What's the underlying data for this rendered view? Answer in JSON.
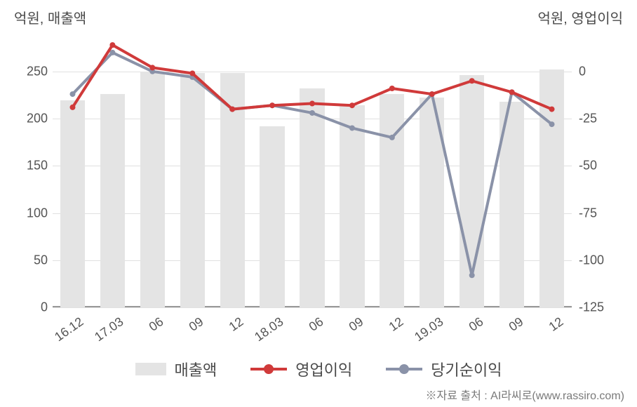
{
  "chart": {
    "type": "bar+line",
    "left_axis_title": "억원, 매출액",
    "right_axis_title": "억원, 영업이익",
    "background_color": "#ffffff",
    "grid_color": "#e0e0e0",
    "axis_text_color": "#555555",
    "title_fontsize": 20,
    "tick_fontsize": 18,
    "categories": [
      "16.12",
      "17.03",
      "06",
      "09",
      "12",
      "18.03",
      "06",
      "09",
      "12",
      "19.03",
      "06",
      "09",
      "12"
    ],
    "left_y": {
      "min": 0,
      "max": 290,
      "ticks": [
        0,
        50,
        100,
        150,
        200,
        250
      ],
      "unit": "억원"
    },
    "right_y": {
      "min": -125,
      "max": 20,
      "ticks": [
        -125,
        -100,
        -75,
        -50,
        -25,
        0
      ],
      "unit": "억원"
    },
    "bars": {
      "name": "매출액",
      "color": "#e4e4e4",
      "width_ratio": 0.62,
      "values": [
        219,
        226,
        250,
        248,
        248,
        192,
        232,
        214,
        226,
        222,
        246,
        218,
        252
      ]
    },
    "line_red": {
      "name": "영업이익",
      "color": "#d03a3a",
      "line_width": 4,
      "marker_size": 8,
      "values": [
        -19,
        14,
        2,
        -1,
        -20,
        -18,
        -17,
        -18,
        -9,
        -12,
        -5,
        -11,
        -20
      ]
    },
    "line_gray": {
      "name": "당기순이익",
      "color": "#8a92a8",
      "line_width": 4,
      "marker_size": 8,
      "values": [
        -12,
        10,
        0,
        -3,
        -20,
        -18,
        -22,
        -30,
        -35,
        -12,
        -108,
        -11,
        -28
      ]
    }
  },
  "legend": {
    "items": [
      {
        "label": "매출액",
        "type": "bar",
        "color": "#e4e4e4"
      },
      {
        "label": "영업이익",
        "type": "line",
        "color": "#d03a3a",
        "marker": true
      },
      {
        "label": "당기순이익",
        "type": "line",
        "color": "#8a92a8",
        "marker": true
      }
    ],
    "fontsize": 22
  },
  "source": "※자료 출처 : AI라씨로(www.rassiro.com)"
}
